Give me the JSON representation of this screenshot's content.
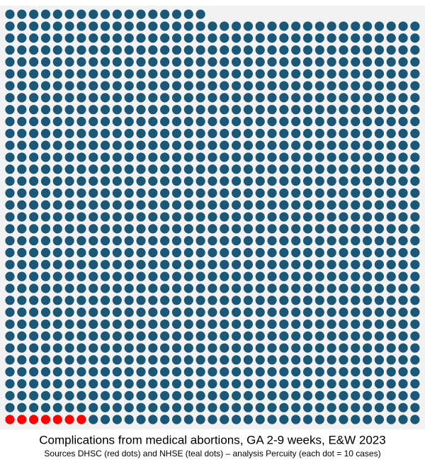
{
  "chart_data": {
    "type": "waffle",
    "title": "Complications from medical abortions, GA 2-9 weeks, E&W 2023",
    "subtitle": "Sources DHSC (red dots) and NHSE (teal dots) – analysis Percuity (each dot = 10 cases)",
    "series": [
      {
        "name": "DHSC",
        "color": "#ff0000",
        "values": [
          7
        ]
      },
      {
        "name": "NHSE",
        "color": "#1b5878",
        "values": [
          1200
        ]
      }
    ]
  }
}
